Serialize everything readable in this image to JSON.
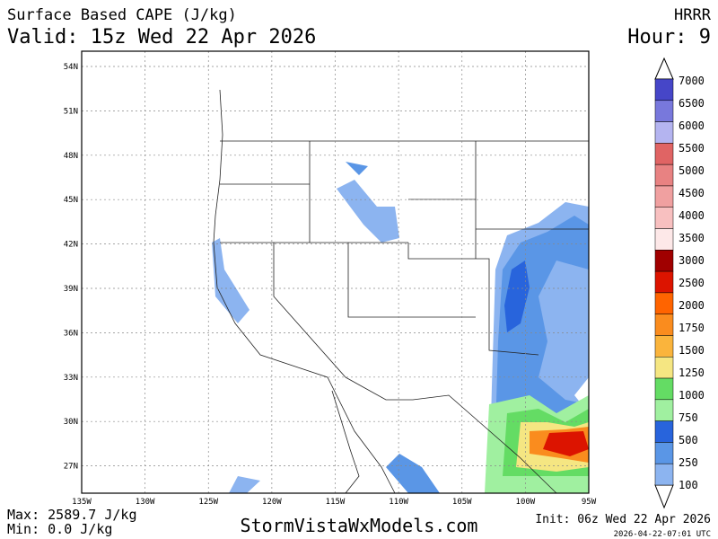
{
  "header": {
    "title": "Surface Based CAPE (J/kg)",
    "valid": "Valid: 15z Wed 22 Apr 2026",
    "model": "HRRR",
    "hour": "Hour: 9"
  },
  "map": {
    "lat_labels": [
      "54N",
      "51N",
      "48N",
      "45N",
      "42N",
      "39N",
      "36N",
      "33N",
      "30N",
      "27N"
    ],
    "lon_labels": [
      "135W",
      "130W",
      "125W",
      "120W",
      "115W",
      "110W",
      "105W",
      "100W",
      "95W"
    ]
  },
  "colorbar": {
    "levels": [
      7000,
      6500,
      6000,
      5500,
      5000,
      4500,
      4000,
      3500,
      3000,
      2500,
      2000,
      1750,
      1500,
      1250,
      1000,
      750,
      500,
      250,
      100
    ],
    "colors": [
      "#4646c8",
      "#7878dc",
      "#b4b4f0",
      "#e06464",
      "#e88282",
      "#f0a0a0",
      "#f8c0c0",
      "#fde8e8",
      "#a00000",
      "#dc1400",
      "#ff6400",
      "#fa8c1e",
      "#fab43c",
      "#f5e682",
      "#64dc64",
      "#a0f0a0",
      "#2864dc",
      "#5a96e6",
      "#8cb4f0"
    ]
  },
  "footer": {
    "max": "Max: 2589.7 J/kg",
    "min": "Min: 0.0 J/kg",
    "site": "StormVistaWxModels.com",
    "init": "Init: 06z Wed 22 Apr 2026",
    "stamp": "2026-04-22-07:01 UTC"
  }
}
